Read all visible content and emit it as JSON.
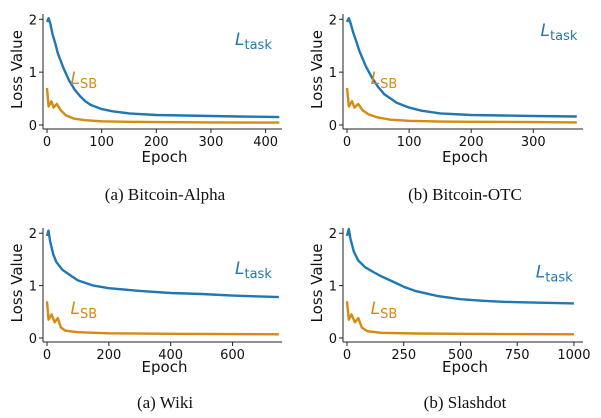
{
  "colors": {
    "task": "#1f77b4",
    "sb": "#d68a0f",
    "axis": "#222222"
  },
  "chart_data": [
    {
      "type": "line",
      "caption": "(a) Bitcoin-Alpha",
      "xlabel": "Epoch",
      "ylabel": "Loss Value",
      "xlim": [
        0,
        430
      ],
      "ylim": [
        0,
        2.1
      ],
      "xticks": [
        0,
        100,
        200,
        300,
        400
      ],
      "yticks": [
        0,
        1,
        2
      ],
      "grid": false,
      "series": [
        {
          "name": "L_task",
          "label_main": "L",
          "label_sub": "task",
          "color_key": "task",
          "points": [
            [
              0,
              1.95
            ],
            [
              3,
              2.02
            ],
            [
              6,
              1.92
            ],
            [
              10,
              1.72
            ],
            [
              15,
              1.55
            ],
            [
              20,
              1.35
            ],
            [
              30,
              1.08
            ],
            [
              40,
              0.85
            ],
            [
              50,
              0.68
            ],
            [
              60,
              0.55
            ],
            [
              70,
              0.45
            ],
            [
              80,
              0.38
            ],
            [
              100,
              0.3
            ],
            [
              120,
              0.26
            ],
            [
              150,
              0.22
            ],
            [
              200,
              0.19
            ],
            [
              250,
              0.18
            ],
            [
              300,
              0.17
            ],
            [
              350,
              0.16
            ],
            [
              400,
              0.155
            ],
            [
              425,
              0.15
            ]
          ]
        },
        {
          "name": "L_SB",
          "label_main": "L",
          "label_sub": "SB",
          "color_key": "sb",
          "points": [
            [
              0,
              0.7
            ],
            [
              3,
              0.35
            ],
            [
              8,
              0.45
            ],
            [
              12,
              0.33
            ],
            [
              18,
              0.4
            ],
            [
              25,
              0.28
            ],
            [
              35,
              0.18
            ],
            [
              50,
              0.12
            ],
            [
              70,
              0.09
            ],
            [
              100,
              0.07
            ],
            [
              150,
              0.06
            ],
            [
              200,
              0.055
            ],
            [
              300,
              0.05
            ],
            [
              425,
              0.045
            ]
          ]
        }
      ]
    },
    {
      "type": "line",
      "caption": "(b) Bitcoin-OTC",
      "xlabel": "Epoch",
      "ylabel": "Loss Value",
      "xlim": [
        0,
        380
      ],
      "ylim": [
        0,
        2.1
      ],
      "xticks": [
        0,
        100,
        200,
        300
      ],
      "yticks": [
        0,
        1,
        2
      ],
      "grid": false,
      "series": [
        {
          "name": "L_task",
          "label_main": "L",
          "label_sub": "task",
          "color_key": "task",
          "points": [
            [
              0,
              1.95
            ],
            [
              3,
              2.02
            ],
            [
              6,
              1.92
            ],
            [
              10,
              1.75
            ],
            [
              15,
              1.58
            ],
            [
              20,
              1.4
            ],
            [
              30,
              1.12
            ],
            [
              40,
              0.9
            ],
            [
              50,
              0.72
            ],
            [
              60,
              0.58
            ],
            [
              80,
              0.42
            ],
            [
              100,
              0.33
            ],
            [
              120,
              0.27
            ],
            [
              150,
              0.22
            ],
            [
              200,
              0.19
            ],
            [
              250,
              0.18
            ],
            [
              300,
              0.17
            ],
            [
              370,
              0.16
            ]
          ]
        },
        {
          "name": "L_SB",
          "label_main": "L",
          "label_sub": "SB",
          "color_key": "sb",
          "points": [
            [
              0,
              0.7
            ],
            [
              3,
              0.35
            ],
            [
              8,
              0.45
            ],
            [
              12,
              0.33
            ],
            [
              18,
              0.4
            ],
            [
              25,
              0.28
            ],
            [
              35,
              0.2
            ],
            [
              50,
              0.14
            ],
            [
              70,
              0.1
            ],
            [
              100,
              0.08
            ],
            [
              150,
              0.065
            ],
            [
              200,
              0.06
            ],
            [
              300,
              0.055
            ],
            [
              370,
              0.05
            ]
          ]
        }
      ]
    },
    {
      "type": "line",
      "caption": "(a) Wiki",
      "xlabel": "Epoch",
      "ylabel": "Loss Value",
      "xlim": [
        0,
        760
      ],
      "ylim": [
        0,
        2.1
      ],
      "xticks": [
        0,
        200,
        400,
        600
      ],
      "yticks": [
        0,
        1,
        2
      ],
      "grid": false,
      "series": [
        {
          "name": "L_task",
          "label_main": "L",
          "label_sub": "task",
          "color_key": "task",
          "points": [
            [
              0,
              1.95
            ],
            [
              5,
              2.05
            ],
            [
              10,
              1.85
            ],
            [
              20,
              1.6
            ],
            [
              30,
              1.45
            ],
            [
              50,
              1.3
            ],
            [
              80,
              1.18
            ],
            [
              100,
              1.1
            ],
            [
              150,
              1.0
            ],
            [
              200,
              0.95
            ],
            [
              300,
              0.9
            ],
            [
              400,
              0.86
            ],
            [
              500,
              0.84
            ],
            [
              600,
              0.81
            ],
            [
              700,
              0.79
            ],
            [
              750,
              0.78
            ]
          ]
        },
        {
          "name": "L_SB",
          "label_main": "L",
          "label_sub": "SB",
          "color_key": "sb",
          "points": [
            [
              0,
              0.7
            ],
            [
              5,
              0.35
            ],
            [
              15,
              0.45
            ],
            [
              25,
              0.3
            ],
            [
              35,
              0.38
            ],
            [
              45,
              0.2
            ],
            [
              60,
              0.14
            ],
            [
              100,
              0.11
            ],
            [
              200,
              0.09
            ],
            [
              400,
              0.08
            ],
            [
              600,
              0.075
            ],
            [
              750,
              0.07
            ]
          ]
        }
      ]
    },
    {
      "type": "line",
      "caption": "(b) Slashdot",
      "xlabel": "Epoch",
      "ylabel": "Loss Value",
      "xlim": [
        0,
        1040
      ],
      "ylim": [
        0,
        2.1
      ],
      "xticks": [
        0,
        250,
        500,
        750,
        1000
      ],
      "yticks": [
        0,
        1,
        2
      ],
      "grid": false,
      "series": [
        {
          "name": "L_task",
          "label_main": "L",
          "label_sub": "task",
          "color_key": "task",
          "points": [
            [
              0,
              1.95
            ],
            [
              8,
              2.08
            ],
            [
              15,
              1.9
            ],
            [
              30,
              1.65
            ],
            [
              50,
              1.48
            ],
            [
              80,
              1.35
            ],
            [
              120,
              1.25
            ],
            [
              150,
              1.18
            ],
            [
              200,
              1.08
            ],
            [
              250,
              0.98
            ],
            [
              300,
              0.9
            ],
            [
              400,
              0.8
            ],
            [
              500,
              0.74
            ],
            [
              600,
              0.71
            ],
            [
              700,
              0.69
            ],
            [
              800,
              0.68
            ],
            [
              900,
              0.67
            ],
            [
              1000,
              0.66
            ]
          ]
        },
        {
          "name": "L_SB",
          "label_main": "L",
          "label_sub": "SB",
          "color_key": "sb",
          "points": [
            [
              0,
              0.7
            ],
            [
              8,
              0.35
            ],
            [
              20,
              0.45
            ],
            [
              35,
              0.3
            ],
            [
              50,
              0.38
            ],
            [
              65,
              0.2
            ],
            [
              90,
              0.13
            ],
            [
              150,
              0.1
            ],
            [
              300,
              0.085
            ],
            [
              500,
              0.08
            ],
            [
              750,
              0.075
            ],
            [
              1000,
              0.07
            ]
          ]
        }
      ]
    }
  ]
}
